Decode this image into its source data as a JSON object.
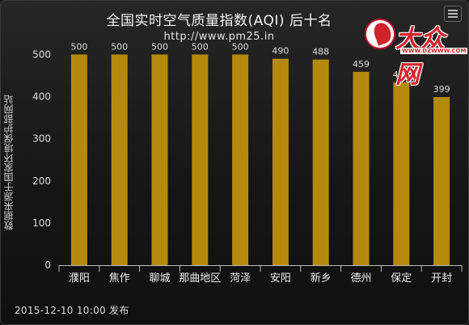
{
  "chart_data": {
    "type": "bar",
    "title": "全国实时空气质量指数(AQI) 后十名",
    "subtitle": "http://www.pm25.in",
    "ylabel": "数据来源于国家环境保护部网站",
    "xlabel": "",
    "categories": [
      "濮阳",
      "焦作",
      "聊城",
      "那曲地区",
      "菏泽",
      "安阳",
      "新乡",
      "德州",
      "保定",
      "开封"
    ],
    "values": [
      500,
      500,
      500,
      500,
      500,
      490,
      488,
      459,
      434,
      399
    ],
    "ylim": [
      0,
      520
    ],
    "yticks": [
      0,
      100,
      200,
      300,
      400,
      500
    ],
    "grid": false,
    "legend": "none",
    "bar_color": "#b5890d"
  },
  "footer": "2015-12-10 10:00 发布",
  "logo": {
    "text": "大众网",
    "url": "WWW.DZWWW.COM"
  },
  "menu_icon": "menu-icon"
}
